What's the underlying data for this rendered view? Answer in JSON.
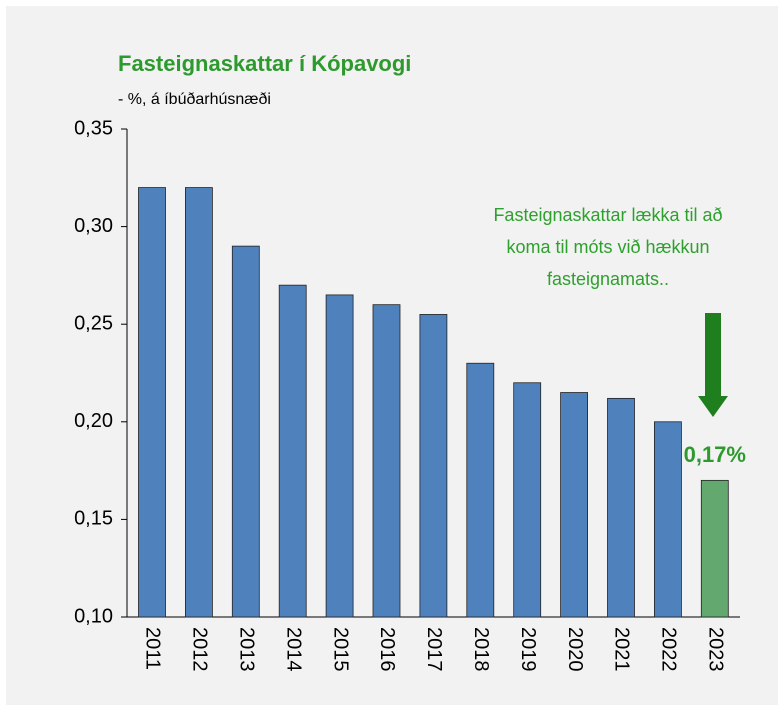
{
  "chart_data": {
    "type": "bar",
    "title": "Fasteignaskattar í Kópavogi",
    "subtitle": "- %, á íbúðarhúsnæði",
    "categories": [
      "2011",
      "2012",
      "2013",
      "2014",
      "2015",
      "2016",
      "2017",
      "2018",
      "2019",
      "2020",
      "2021",
      "2022",
      "2023"
    ],
    "values": [
      0.32,
      0.32,
      0.29,
      0.27,
      0.265,
      0.26,
      0.255,
      0.23,
      0.22,
      0.215,
      0.212,
      0.2,
      0.17
    ],
    "value_labels": [
      null,
      null,
      null,
      null,
      null,
      null,
      null,
      null,
      null,
      null,
      null,
      null,
      "0,17%"
    ],
    "colors": [
      "#4f81bd",
      "#4f81bd",
      "#4f81bd",
      "#4f81bd",
      "#4f81bd",
      "#4f81bd",
      "#4f81bd",
      "#4f81bd",
      "#4f81bd",
      "#4f81bd",
      "#4f81bd",
      "#4f81bd",
      "#62a86f"
    ],
    "ylim": [
      0.1,
      0.35
    ],
    "yticks": [
      {
        "value": 0.1,
        "label": "0,10"
      },
      {
        "value": 0.15,
        "label": "0,15"
      },
      {
        "value": 0.2,
        "label": "0,20"
      },
      {
        "value": 0.25,
        "label": "0,25"
      },
      {
        "value": 0.3,
        "label": "0,30"
      },
      {
        "value": 0.35,
        "label": "0,35"
      }
    ],
    "grid": false,
    "annotation": [
      "Fasteignaskattar lækka til að",
      "koma til móts við hækkun",
      "fasteignamats.."
    ]
  }
}
